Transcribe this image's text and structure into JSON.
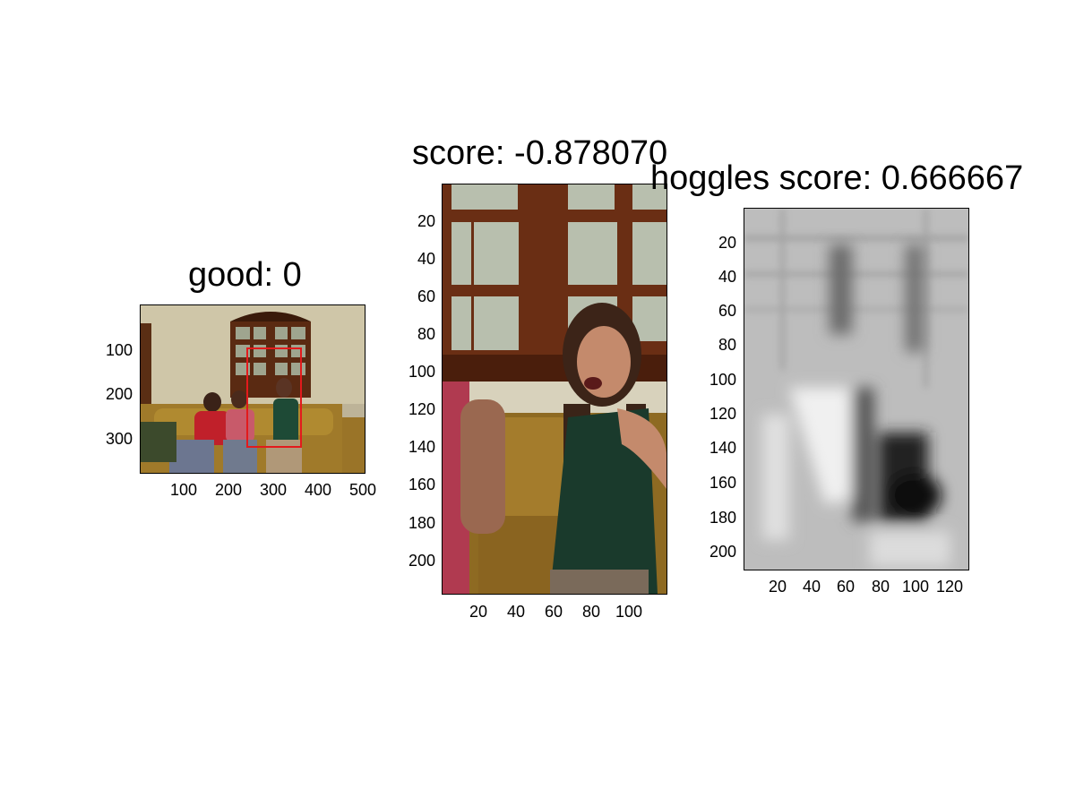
{
  "panels": [
    {
      "title": "good: 0",
      "x_ticks": [
        "100",
        "200",
        "300",
        "400",
        "500"
      ],
      "y_ticks": [
        "100",
        "200",
        "300"
      ],
      "box_color": "#e31a1c"
    },
    {
      "title": "score: -0.878070",
      "x_ticks": [
        "20",
        "40",
        "60",
        "80",
        "100"
      ],
      "y_ticks": [
        "20",
        "40",
        "60",
        "80",
        "100",
        "120",
        "140",
        "160",
        "180",
        "200"
      ]
    },
    {
      "title": "hoggles score: 0.666667",
      "x_ticks": [
        "20",
        "40",
        "60",
        "80",
        "100",
        "120"
      ],
      "y_ticks": [
        "20",
        "40",
        "60",
        "80",
        "100",
        "120",
        "140",
        "160",
        "180",
        "200"
      ]
    }
  ]
}
